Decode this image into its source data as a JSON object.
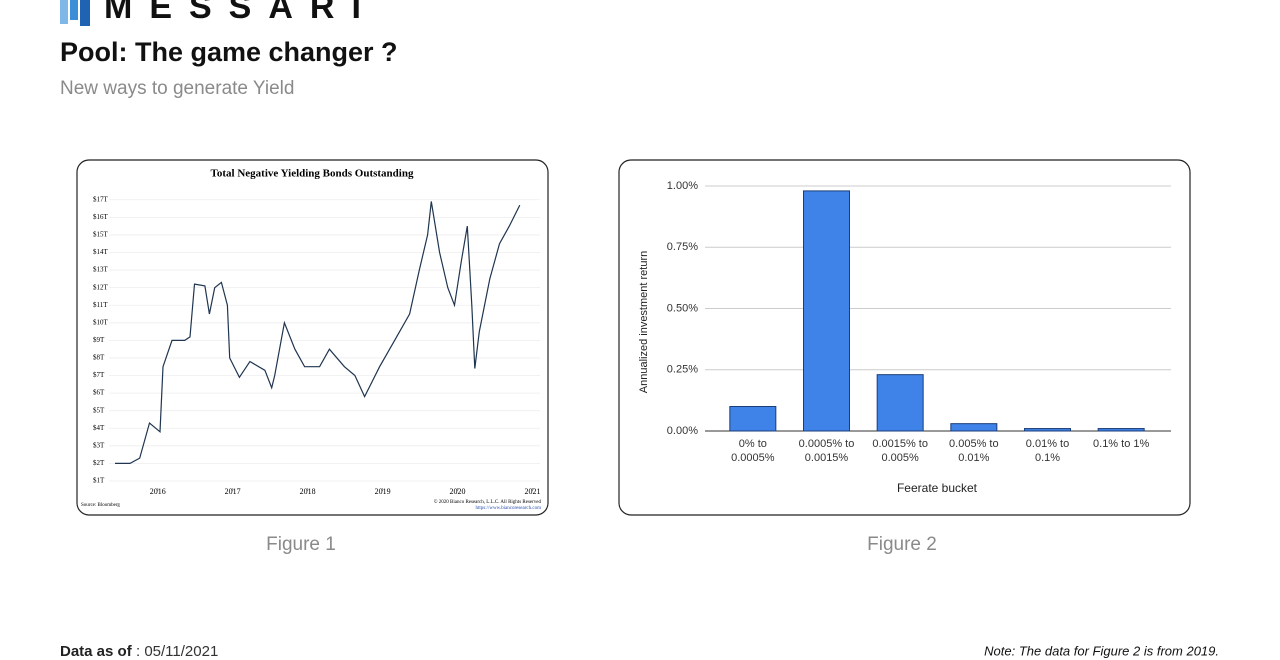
{
  "header": {
    "logo": "MESSARI",
    "title": "Pool: The game changer ?",
    "subtitle": "New ways to generate Yield"
  },
  "chart_data": [
    {
      "type": "line",
      "title": "Total Negative Yielding Bonds Outstanding",
      "source": "Source: Bloomberg",
      "copyright": "© 2020 Bianco Research, L.L.C. All Rights Reserved",
      "url": "https://www.biancoresearch.com",
      "color": "#1f3550",
      "grid": true,
      "x": [
        2015.43,
        2015.63,
        2015.76,
        2015.89,
        2016.03,
        2016.07,
        2016.19,
        2016.36,
        2016.43,
        2016.49,
        2016.63,
        2016.69,
        2016.76,
        2016.85,
        2016.93,
        2016.96,
        2017.09,
        2017.23,
        2017.43,
        2017.52,
        2017.56,
        2017.69,
        2017.83,
        2017.96,
        2018.16,
        2018.29,
        2018.49,
        2018.63,
        2018.76,
        2018.96,
        2019.16,
        2019.36,
        2019.49,
        2019.6,
        2019.65,
        2019.76,
        2019.87,
        2019.96,
        2020.05,
        2020.13,
        2020.19,
        2020.23,
        2020.29,
        2020.43,
        2020.56,
        2020.69,
        2020.83
      ],
      "values": [
        2.0,
        2.0,
        2.3,
        4.3,
        3.8,
        7.5,
        9.0,
        9.0,
        9.2,
        12.2,
        12.1,
        10.5,
        12.0,
        12.3,
        11.0,
        8.0,
        6.9,
        7.8,
        7.3,
        6.3,
        7.0,
        10.0,
        8.5,
        7.5,
        7.5,
        8.5,
        7.5,
        7.0,
        5.8,
        7.5,
        9.0,
        10.5,
        13.0,
        15.0,
        16.9,
        14.0,
        12.0,
        11.0,
        13.5,
        15.5,
        11.0,
        7.4,
        9.5,
        12.5,
        14.5,
        15.5,
        16.7
      ],
      "xlim": [
        2015.35,
        2021.1
      ],
      "xticks": [
        2016,
        2017,
        2018,
        2019,
        2020,
        2021
      ],
      "ylim": [
        0.6,
        17.5
      ],
      "yticks": [
        {
          "value": 1,
          "label": "$1T"
        },
        {
          "value": 2,
          "label": "$2T"
        },
        {
          "value": 3,
          "label": "$3T"
        },
        {
          "value": 4,
          "label": "$4T"
        },
        {
          "value": 5,
          "label": "$5T"
        },
        {
          "value": 6,
          "label": "$6T"
        },
        {
          "value": 7,
          "label": "$7T"
        },
        {
          "value": 8,
          "label": "$8T"
        },
        {
          "value": 9,
          "label": "$9T"
        },
        {
          "value": 10,
          "label": "$10T"
        },
        {
          "value": 11,
          "label": "$11T"
        },
        {
          "value": 12,
          "label": "$12T"
        },
        {
          "value": 13,
          "label": "$13T"
        },
        {
          "value": 14,
          "label": "$14T"
        },
        {
          "value": 15,
          "label": "$15T"
        },
        {
          "value": 16,
          "label": "$16T"
        },
        {
          "value": 17,
          "label": "$17T"
        }
      ]
    },
    {
      "type": "bar",
      "x_label": "Feerate bucket",
      "y_label": "Annualized investment return",
      "color": "#3f82e8",
      "grid": true,
      "categories": [
        "0% to 0.0005%",
        "0.0005% to 0.0015%",
        "0.0015% to 0.005%",
        "0.005% to 0.01%",
        "0.01% to 0.1%",
        "0.1% to 1%"
      ],
      "values": [
        0.1,
        0.98,
        0.23,
        0.03,
        0.01,
        0.01
      ],
      "ylim": [
        0,
        1
      ],
      "yticks": [
        {
          "value": 0,
          "label": "0.00%"
        },
        {
          "value": 0.25,
          "label": "0.25%"
        },
        {
          "value": 0.5,
          "label": "0.50%"
        },
        {
          "value": 0.75,
          "label": "0.75%"
        },
        {
          "value": 1,
          "label": "1.00%"
        }
      ]
    }
  ],
  "captions": [
    "Figure 1",
    "Figure 2"
  ],
  "footer": {
    "label": "Data as of",
    "date": ": 05/11/2021",
    "note": "Note: The data for Figure 2 is from 2019."
  }
}
